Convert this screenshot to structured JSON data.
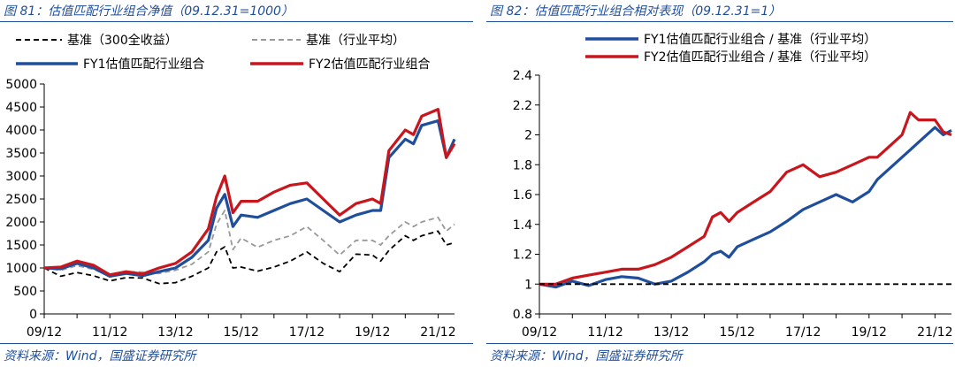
{
  "left": {
    "figure_title": "图 81：估值匹配行业组合净值（09.12.31=1000）",
    "source": "资料来源：Wind，国盛证券研究所"
  },
  "right": {
    "figure_title": "图 82：估值匹配行业组合相对表现（09.12.31=1）",
    "source": "资料来源：Wind，国盛证券研究所"
  },
  "colors": {
    "blue": "#1f4e9c",
    "red": "#c8161d",
    "black": "#000000",
    "gray": "#999999"
  },
  "chart_data": [
    {
      "type": "line",
      "x": [
        "2009-12",
        "2010-06",
        "2010-12",
        "2011-06",
        "2011-12",
        "2012-06",
        "2012-12",
        "2013-06",
        "2013-12",
        "2014-06",
        "2014-12",
        "2015-03",
        "2015-06",
        "2015-09",
        "2015-12",
        "2016-06",
        "2016-12",
        "2017-06",
        "2017-12",
        "2018-06",
        "2018-12",
        "2019-06",
        "2019-12",
        "2020-03",
        "2020-06",
        "2020-12",
        "2021-03",
        "2021-06",
        "2021-12",
        "2022-03",
        "2022-06"
      ],
      "x_tick_labels": [
        "09/12",
        "11/12",
        "13/12",
        "15/12",
        "17/12",
        "19/12",
        "21/12"
      ],
      "ylim": [
        0,
        5000
      ],
      "y_ticks": [
        0,
        500,
        1000,
        1500,
        2000,
        2500,
        3000,
        3500,
        4000,
        4500,
        5000
      ],
      "series": [
        {
          "name": "基准（300全收益）",
          "style": "dashed",
          "color": "#000000",
          "values": [
            1000,
            820,
            900,
            830,
            720,
            790,
            780,
            660,
            680,
            820,
            1000,
            1350,
            1460,
            1000,
            1020,
            930,
            1020,
            1150,
            1350,
            1100,
            920,
            1300,
            1280,
            1150,
            1380,
            1700,
            1600,
            1700,
            1800,
            1500,
            1550
          ]
        },
        {
          "name": "基准（行业平均）",
          "style": "dashed",
          "color": "#999999",
          "values": [
            1000,
            950,
            1050,
            970,
            830,
            920,
            910,
            880,
            950,
            1080,
            1350,
            1950,
            2250,
            1400,
            1650,
            1450,
            1600,
            1700,
            1900,
            1600,
            1280,
            1600,
            1600,
            1500,
            1700,
            2000,
            1900,
            2000,
            2100,
            1800,
            1950
          ]
        },
        {
          "name": "FY1估值匹配行业组合",
          "style": "solid",
          "color": "#1f4e9c",
          "values": [
            1000,
            980,
            1100,
            1000,
            820,
            880,
            830,
            920,
            1000,
            1230,
            1600,
            2300,
            2600,
            1900,
            2150,
            2100,
            2250,
            2400,
            2500,
            2250,
            2000,
            2150,
            2250,
            2250,
            3400,
            3800,
            3700,
            4100,
            4200,
            3400,
            3800
          ]
        },
        {
          "name": "FY2估值匹配行业组合",
          "style": "solid",
          "color": "#c8161d",
          "values": [
            1000,
            1020,
            1150,
            1060,
            850,
            920,
            870,
            1000,
            1100,
            1350,
            1850,
            2550,
            3000,
            2200,
            2450,
            2450,
            2650,
            2800,
            2850,
            2500,
            2150,
            2400,
            2500,
            2400,
            3550,
            4000,
            3900,
            4300,
            4450,
            3400,
            3700
          ]
        }
      ]
    },
    {
      "type": "line",
      "x": [
        "2009-12",
        "2010-06",
        "2010-12",
        "2011-06",
        "2011-12",
        "2012-06",
        "2012-12",
        "2013-06",
        "2013-12",
        "2014-06",
        "2014-12",
        "2015-03",
        "2015-06",
        "2015-09",
        "2015-12",
        "2016-06",
        "2016-12",
        "2017-06",
        "2017-12",
        "2018-06",
        "2018-12",
        "2019-06",
        "2019-12",
        "2020-03",
        "2020-06",
        "2020-12",
        "2021-03",
        "2021-06",
        "2021-12",
        "2022-03",
        "2022-06"
      ],
      "x_tick_labels": [
        "09/12",
        "11/12",
        "13/12",
        "15/12",
        "17/12",
        "19/12",
        "21/12"
      ],
      "ylim": [
        0.8,
        2.4
      ],
      "y_ticks": [
        0.8,
        1,
        1.2,
        1.4,
        1.6,
        1.8,
        2,
        2.2,
        2.4
      ],
      "series": [
        {
          "name": "FY1估值匹配行业组合 / 基准（行业平均）",
          "style": "solid",
          "color": "#1f4e9c",
          "values": [
            1.0,
            0.98,
            1.02,
            0.99,
            1.03,
            1.05,
            1.04,
            1.0,
            1.02,
            1.08,
            1.15,
            1.2,
            1.22,
            1.18,
            1.25,
            1.3,
            1.35,
            1.42,
            1.5,
            1.55,
            1.6,
            1.55,
            1.62,
            1.7,
            1.75,
            1.85,
            1.9,
            1.95,
            2.05,
            2.0,
            2.03
          ]
        },
        {
          "name": "FY2估值匹配行业组合 / 基准（行业平均）",
          "style": "solid",
          "color": "#c8161d",
          "values": [
            1.0,
            1.0,
            1.04,
            1.06,
            1.08,
            1.1,
            1.1,
            1.13,
            1.18,
            1.25,
            1.32,
            1.45,
            1.48,
            1.42,
            1.48,
            1.55,
            1.62,
            1.75,
            1.8,
            1.72,
            1.75,
            1.8,
            1.85,
            1.85,
            1.9,
            2.0,
            2.15,
            2.1,
            2.1,
            2.02,
            2.0
          ]
        },
        {
          "name": "",
          "style": "dashed",
          "color": "#000000",
          "values": [
            1,
            1,
            1,
            1,
            1,
            1,
            1,
            1,
            1,
            1,
            1,
            1,
            1,
            1,
            1,
            1,
            1,
            1,
            1,
            1,
            1,
            1,
            1,
            1,
            1,
            1,
            1,
            1,
            1,
            1,
            1
          ]
        }
      ]
    }
  ]
}
